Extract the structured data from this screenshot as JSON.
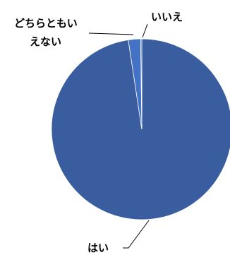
{
  "chart_data": {
    "type": "pie",
    "title": "",
    "categories": [
      "はい",
      "どちらともいえない",
      "いいえ"
    ],
    "values": [
      97.6,
      2.2,
      0.2
    ],
    "slices": [
      {
        "label": "はい",
        "label_lines": [
          "はい"
        ],
        "value": 97.6,
        "color": "#3a5da0"
      },
      {
        "label": "どちらともいえない",
        "label_lines": [
          "どちらともい",
          "えない"
        ],
        "value": 2.2,
        "color": "#4472c4"
      },
      {
        "label": "いいえ",
        "label_lines": [
          "いいえ"
        ],
        "value": 0.2,
        "color": "#4a7bd0"
      }
    ],
    "legend": "none",
    "data_labels": "category name with leader lines"
  }
}
